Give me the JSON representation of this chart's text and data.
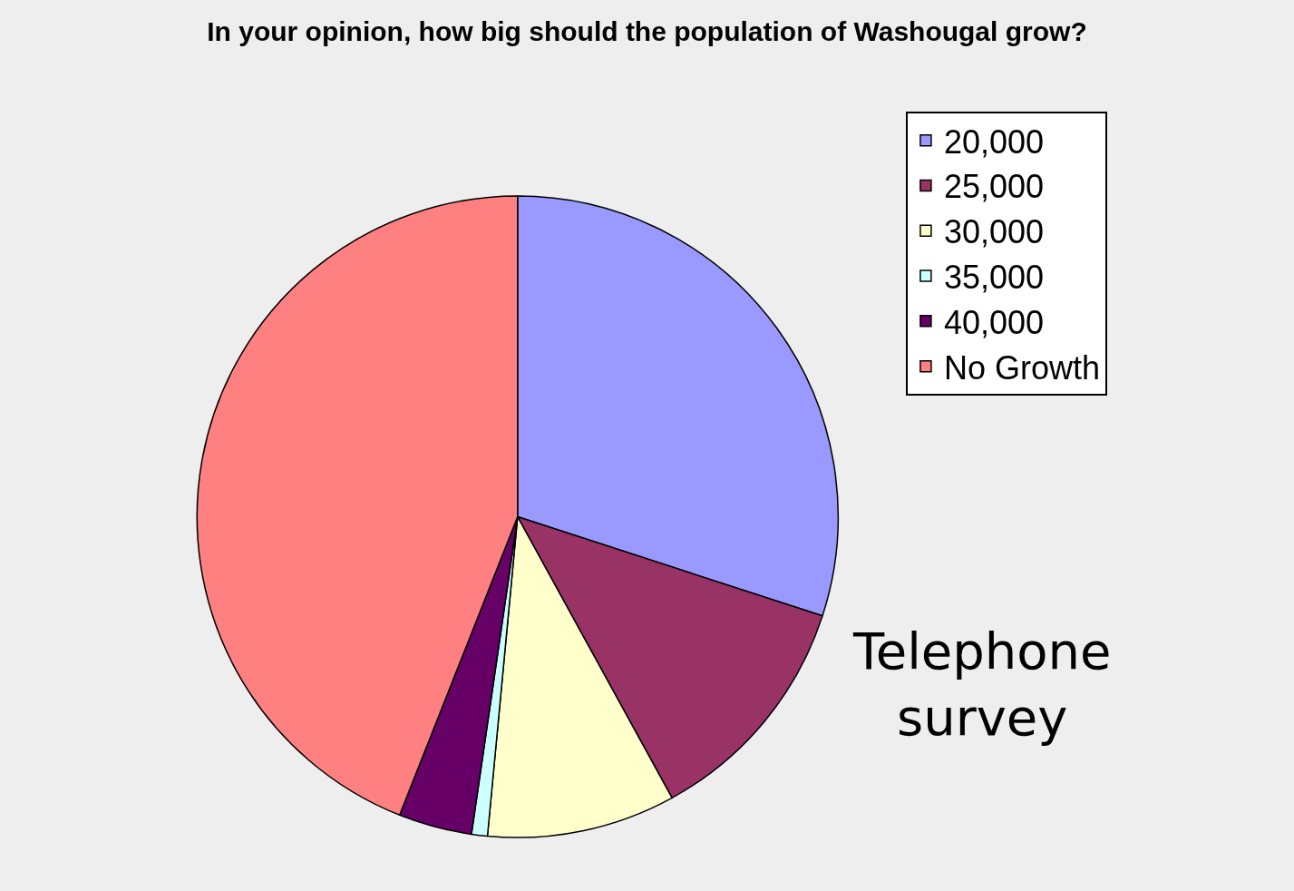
{
  "chart_data": {
    "type": "pie",
    "title": "In your opinion, how big should the population of Washougal grow?",
    "categories": [
      "20,000",
      "25,000",
      "30,000",
      "35,000",
      "40,000",
      "No Growth"
    ],
    "values": [
      30,
      12,
      9.5,
      0.8,
      3.7,
      44
    ],
    "colors": [
      "#9999ff",
      "#993366",
      "#ffffcc",
      "#ccffff",
      "#660066",
      "#ff8080"
    ],
    "legend": "top right",
    "annotations": [
      "Telephone survey"
    ]
  }
}
